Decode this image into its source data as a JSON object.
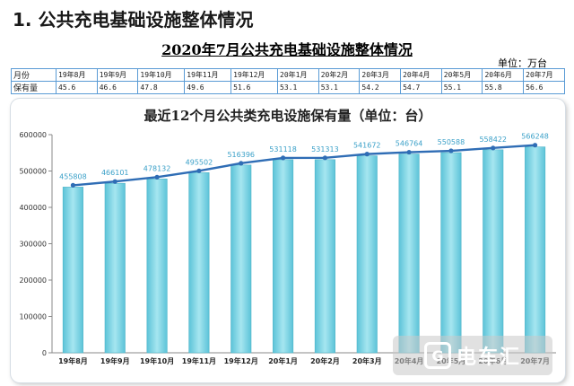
{
  "page": {
    "heading": "1. 公共充电基础设施整体情况",
    "subtitle": "2020年7月公共充电基础设施整体情况",
    "unit_label": "单位：万台"
  },
  "summary_table": {
    "row_header_month": "月份",
    "row_header_value": "保有量",
    "months": [
      "19年8月",
      "19年9月",
      "19年10月",
      "19年11月",
      "19年12月",
      "20年1月",
      "20年2月",
      "20年3月",
      "20年4月",
      "20年5月",
      "20年6月",
      "20年7月"
    ],
    "values": [
      "45.6",
      "46.6",
      "47.8",
      "49.6",
      "51.6",
      "53.1",
      "53.1",
      "54.2",
      "54.7",
      "55.1",
      "55.8",
      "56.6"
    ]
  },
  "chart_data": {
    "type": "bar",
    "title": "最近12个月公共类充电设施保有量（单位：台）",
    "categories": [
      "19年8月",
      "19年9月",
      "19年10月",
      "19年11月",
      "19年12月",
      "20年1月",
      "20年2月",
      "20年3月",
      "20年4月",
      "20年5月",
      "20年6月",
      "20年7月"
    ],
    "values": [
      455808,
      466101,
      478132,
      495502,
      516396,
      531118,
      531313,
      541672,
      546764,
      550588,
      558422,
      566248
    ],
    "overlay_line": true,
    "ylim": [
      0,
      600000
    ],
    "yticks": [
      0,
      100000,
      200000,
      300000,
      400000,
      500000,
      600000
    ],
    "grid": false,
    "legend": "none",
    "colors": {
      "bar": "#7fd3e3",
      "bar_edge": "#4fb4c8",
      "line": "#2f6db5",
      "label": "#3aa0c8"
    }
  },
  "watermark": {
    "logo_char": "G",
    "text": "电车汇"
  }
}
